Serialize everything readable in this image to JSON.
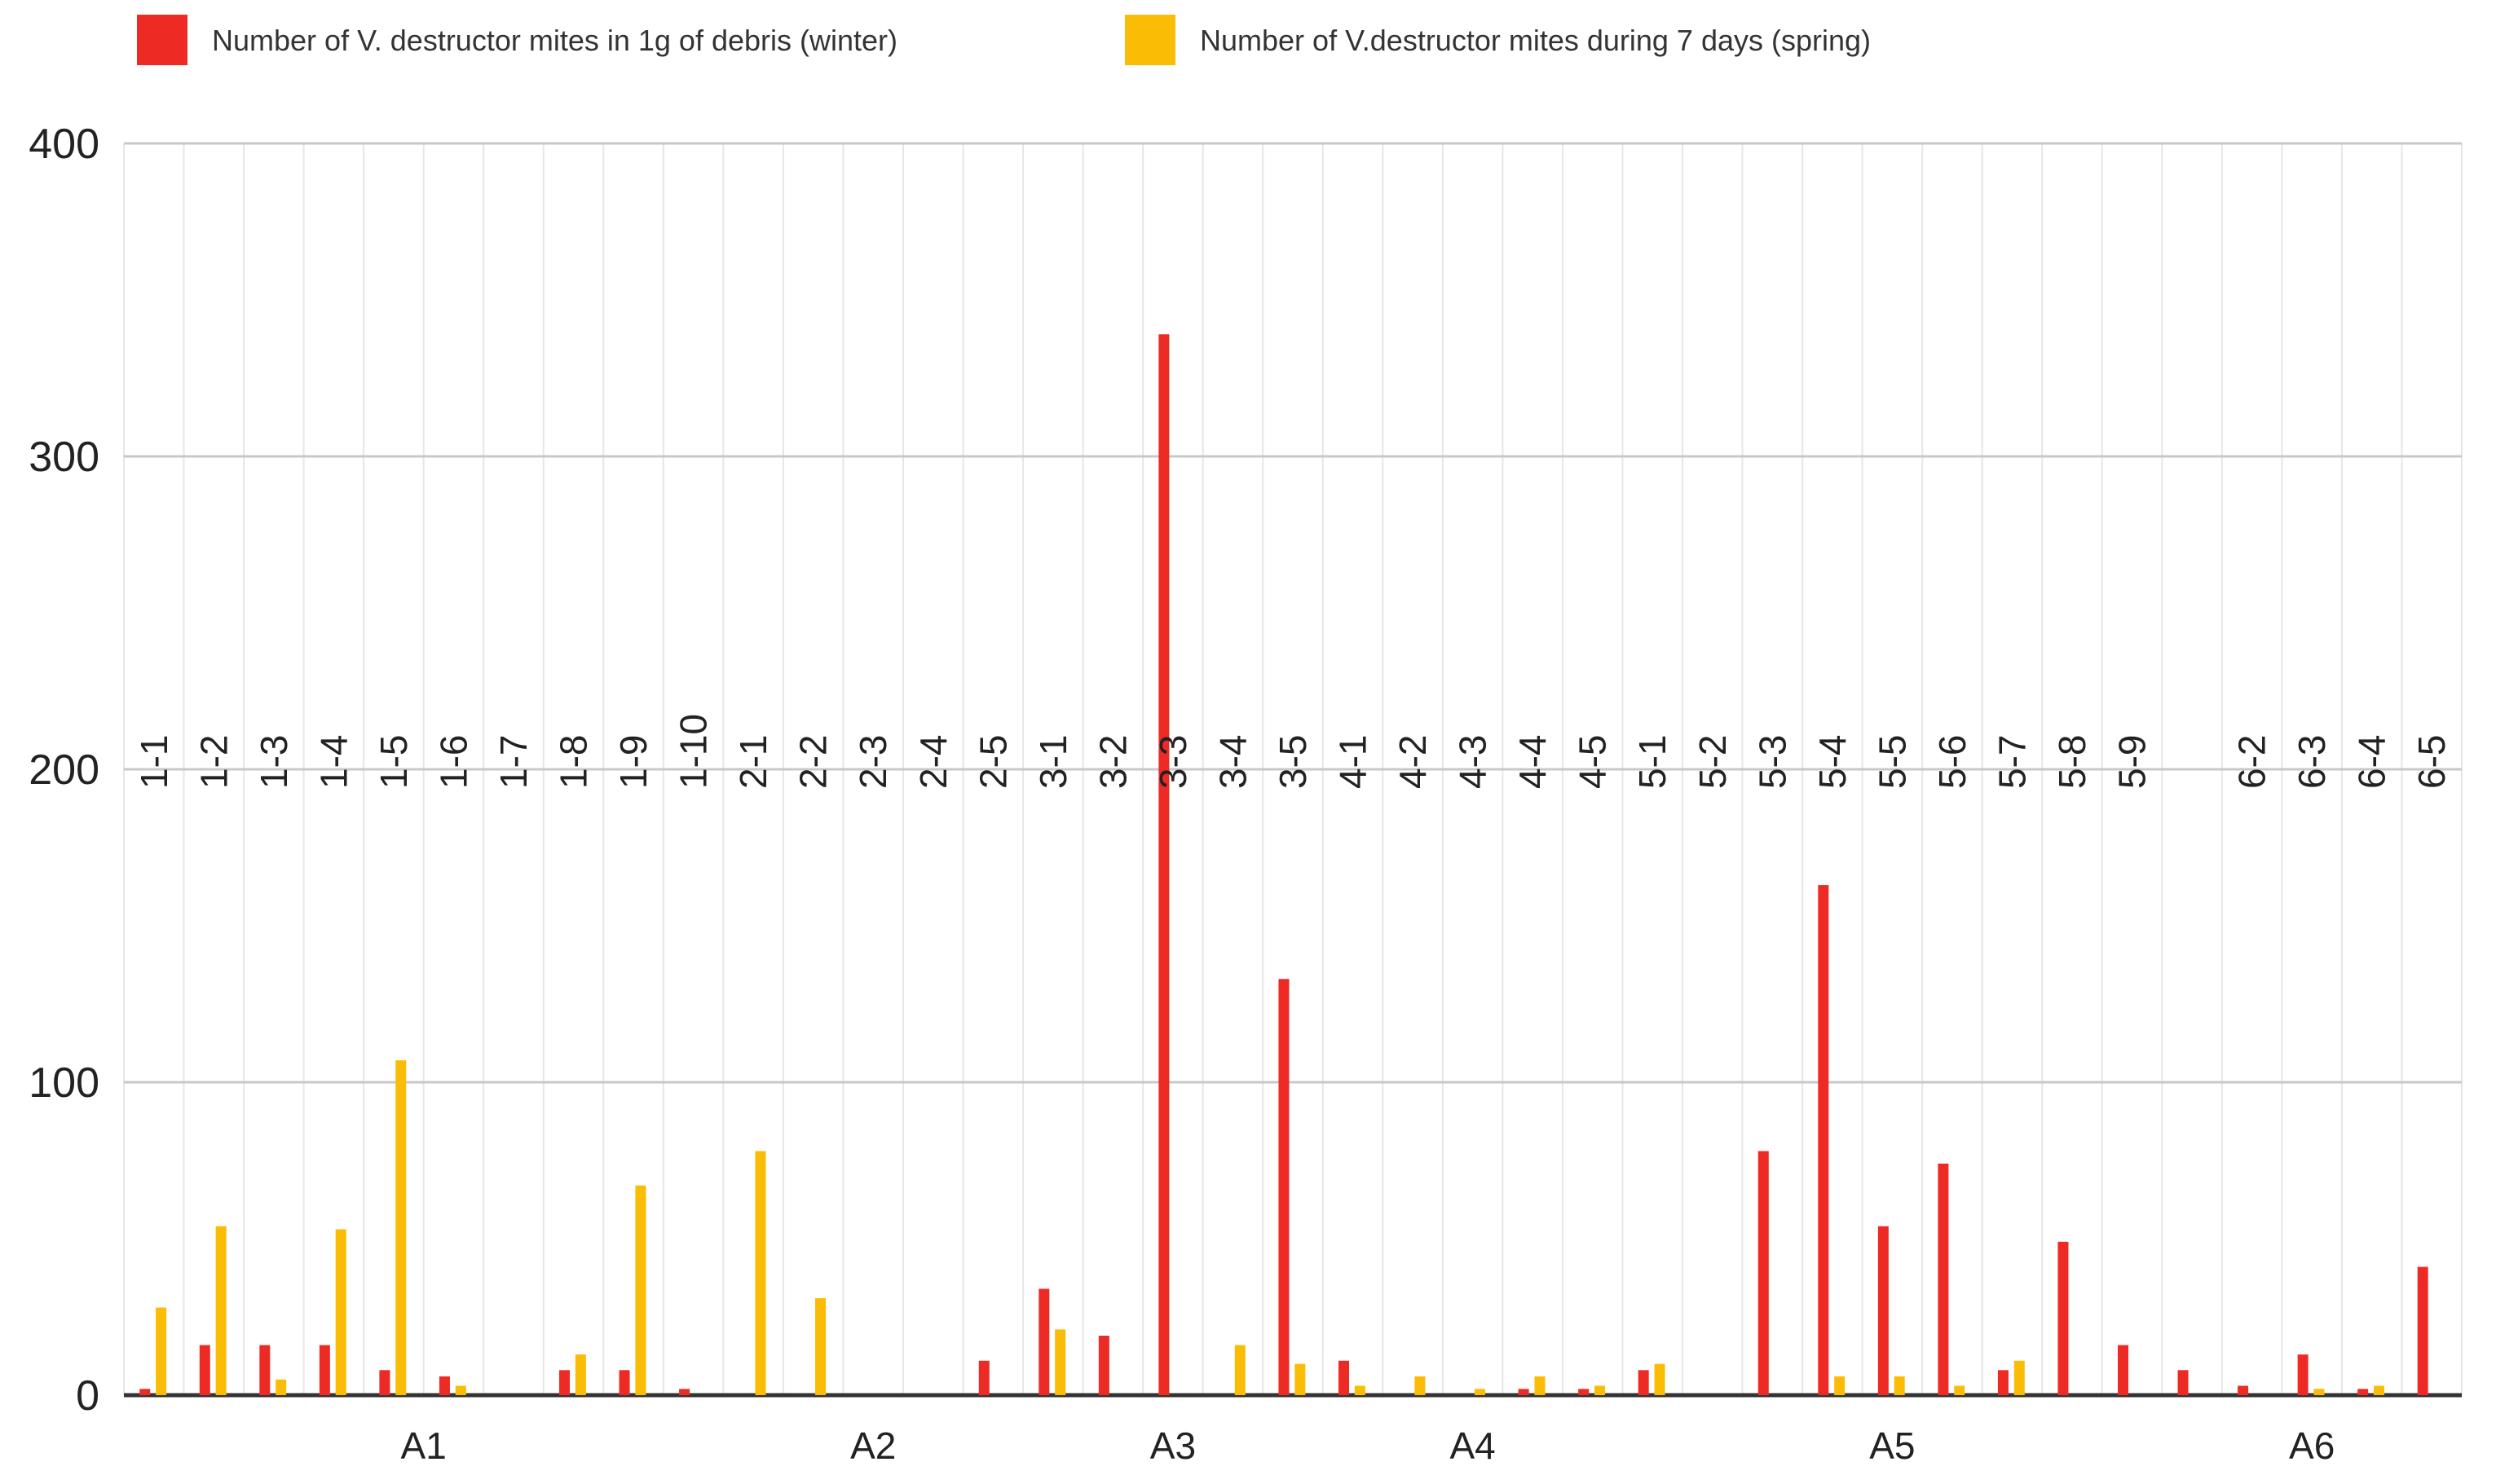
{
  "chart_data": {
    "type": "bar",
    "title": "",
    "xlabel": "",
    "ylabel": "",
    "ylim": [
      0,
      400
    ],
    "yticks": [
      0,
      100,
      200,
      300,
      400
    ],
    "grid": true,
    "legend_position": "top-left",
    "categories": [
      "1-1",
      "1-2",
      "1-3",
      "1-4",
      "1-5",
      "1-6",
      "1-7",
      "1-8",
      "1-9",
      "1-10",
      "2-1",
      "2-2",
      "2-3",
      "2-4",
      "2-5",
      "3-1",
      "3-2",
      "3-3",
      "3-4",
      "3-5",
      "4-1",
      "4-2",
      "4-3",
      "4-4",
      "4-5",
      "5-1",
      "5-2",
      "5-3",
      "5-4",
      "5-5",
      "5-6",
      "5-7",
      "5-8",
      "5-9",
      "",
      "6-2",
      "6-3",
      "6-4",
      "6-5"
    ],
    "groups": [
      {
        "label": "A1",
        "from": 0,
        "to": 9
      },
      {
        "label": "A2",
        "from": 10,
        "to": 14
      },
      {
        "label": "A3",
        "from": 15,
        "to": 19
      },
      {
        "label": "A4",
        "from": 20,
        "to": 24
      },
      {
        "label": "A5",
        "from": 25,
        "to": 33
      },
      {
        "label": "A6",
        "from": 34,
        "to": 38
      }
    ],
    "series": [
      {
        "name": "Number of V. destructor mites in 1g of debris (winter)",
        "color": "#ee2a24",
        "values": [
          2,
          16,
          16,
          16,
          8,
          6,
          0,
          8,
          8,
          2,
          0,
          0,
          0,
          0,
          11,
          34,
          19,
          339,
          0,
          133,
          11,
          0,
          0,
          2,
          2,
          8,
          0,
          78,
          163,
          54,
          74,
          8,
          49,
          16,
          8,
          3,
          13,
          2,
          41
        ]
      },
      {
        "name": "Number of V.destructor mites during 7 days (spring)",
        "color": "#fbbc05",
        "values": [
          28,
          54,
          5,
          53,
          107,
          3,
          0,
          13,
          67,
          0,
          78,
          31,
          0,
          0,
          0,
          21,
          0,
          0,
          16,
          10,
          3,
          6,
          2,
          6,
          3,
          10,
          0,
          0,
          6,
          6,
          3,
          11,
          0,
          0,
          0,
          0,
          2,
          3,
          0
        ]
      }
    ]
  }
}
